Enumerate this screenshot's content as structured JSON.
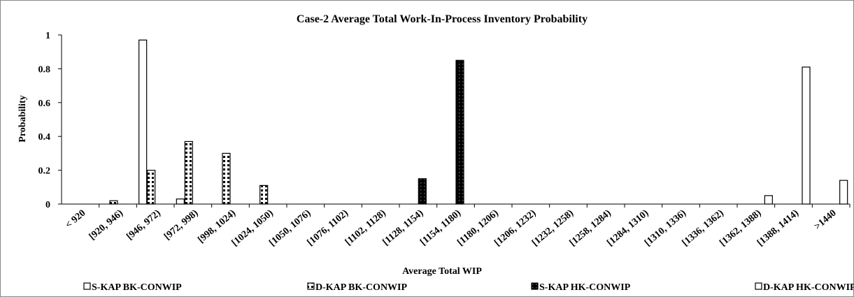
{
  "chart_data": {
    "type": "bar",
    "title": "Case-2 Average Total Work-In-Process  Inventory Probability",
    "xlabel": "Average Total WIP",
    "ylabel": "Probability",
    "categories": [
      "< 920",
      "[920, 946)",
      "[946, 972)",
      "[972, 998)",
      "[998, 1024)",
      "[1024, 1050)",
      "[1050, 1076)",
      "[1076, 1102)",
      "[1102, 1128)",
      "[1128, 1154)",
      "[1154, 1180)",
      "[1180, 1206)",
      "[1206, 1232)",
      "[1232, 1258)",
      "[1258, 1284)",
      "[1284, 1310)",
      "[1310, 1336)",
      "[1336, 1362)",
      "[1362, 1388)",
      "[1388, 1414)",
      ">1440"
    ],
    "series": [
      {
        "name": "S-KAP BK-CONWIP",
        "color": "#ffffff",
        "pattern": "none",
        "values": [
          0,
          0,
          0.97,
          0.03,
          0,
          0,
          0,
          0,
          0,
          0,
          0,
          0,
          0,
          0,
          0,
          0,
          0,
          0,
          0,
          0,
          0
        ]
      },
      {
        "name": "D-KAP BK-CONWIP",
        "color": "#ffffff",
        "pattern": "dots",
        "values": [
          0,
          0.02,
          0.2,
          0.37,
          0.3,
          0.11,
          0,
          0,
          0,
          0,
          0,
          0,
          0,
          0,
          0,
          0,
          0,
          0,
          0,
          0,
          0
        ]
      },
      {
        "name": "S-KAP HK-CONWIP",
        "color": "#000000",
        "pattern": "dense",
        "values": [
          0,
          0,
          0,
          0,
          0,
          0,
          0,
          0,
          0,
          0.15,
          0.85,
          0,
          0,
          0,
          0,
          0,
          0,
          0,
          0,
          0,
          0
        ]
      },
      {
        "name": "D-KAP HK-CONWIP",
        "color": "#ffffff",
        "pattern": "none",
        "values": [
          0,
          0,
          0,
          0,
          0,
          0,
          0,
          0,
          0,
          0,
          0,
          0,
          0,
          0,
          0,
          0,
          0,
          0,
          0.05,
          0.81,
          0.14
        ]
      }
    ],
    "ylim": [
      0,
      1
    ],
    "yticks": [
      0,
      0.2,
      0.4,
      0.6,
      0.8,
      1
    ],
    "grid": false,
    "legend": "bottom"
  }
}
